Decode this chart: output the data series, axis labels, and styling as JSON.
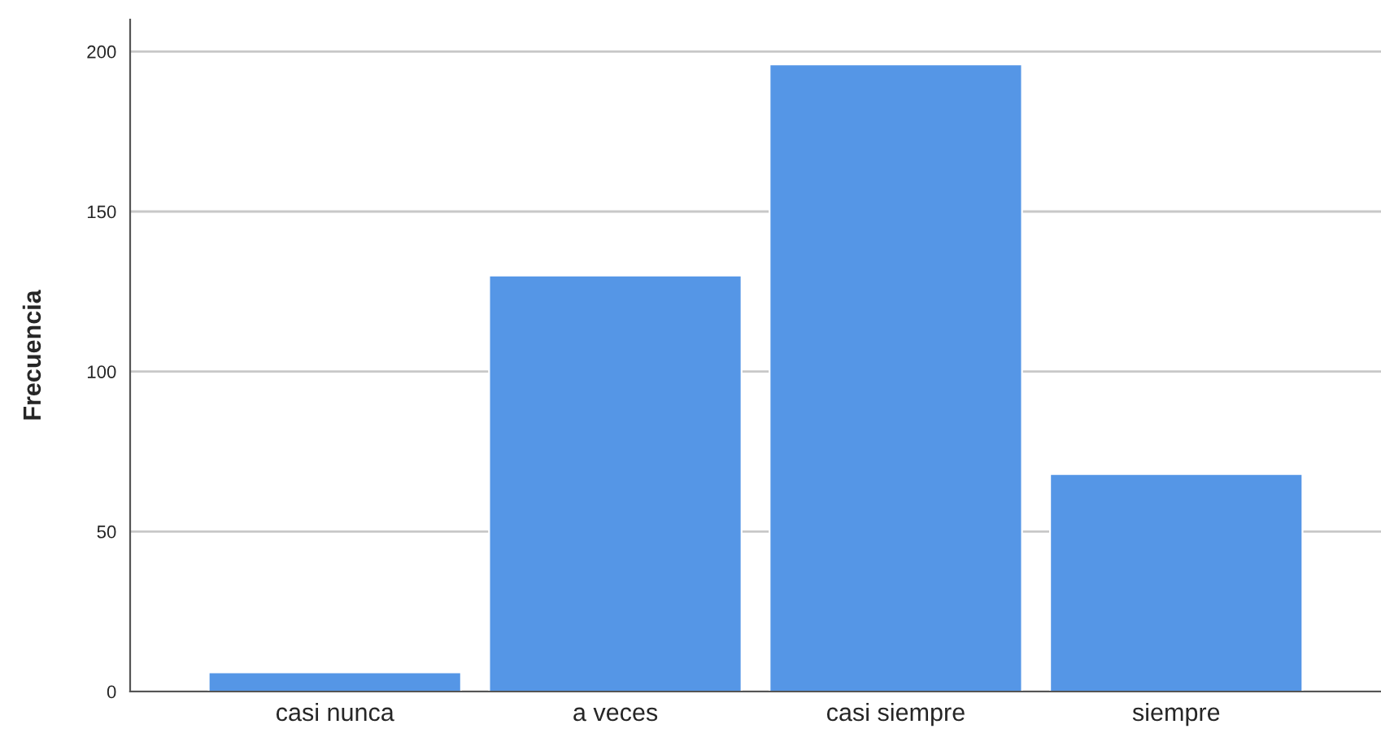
{
  "chart_data": {
    "type": "bar",
    "ylabel": "Frecuencia",
    "categories": [
      "casi nunca",
      "a veces",
      "casi siempre",
      "siempre"
    ],
    "values": [
      6,
      130,
      196,
      68
    ],
    "color": "#5596e6",
    "ylim": [
      0,
      210
    ],
    "yticks": [
      0,
      50,
      100,
      150,
      200
    ],
    "grid": "y",
    "legend": false
  }
}
